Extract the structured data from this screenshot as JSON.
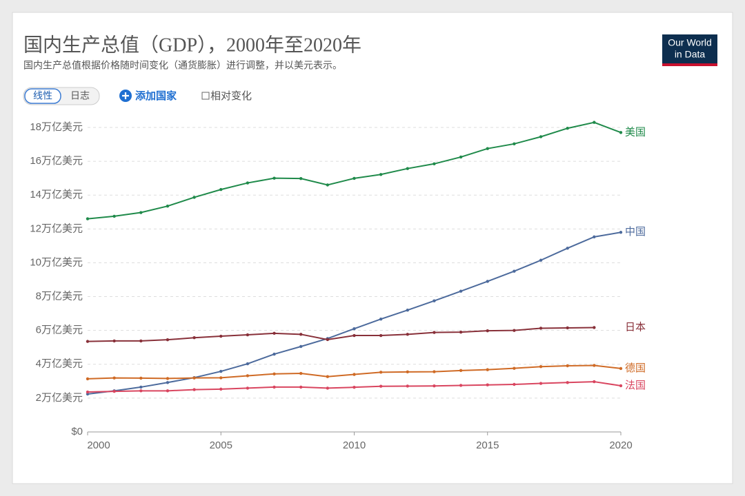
{
  "chart_data": {
    "type": "line",
    "title": "国内生产总值（GDP），2000年至2020年",
    "subtitle": "国内生产总值根据价格随时间变化（通货膨胀）进行调整，并以美元表示。",
    "x": [
      2000,
      2001,
      2002,
      2003,
      2004,
      2005,
      2006,
      2007,
      2008,
      2009,
      2010,
      2011,
      2012,
      2013,
      2014,
      2015,
      2016,
      2017,
      2018,
      2019,
      2020
    ],
    "xlim": [
      2000,
      2020
    ],
    "xticks": [
      2000,
      2005,
      2010,
      2015,
      2020
    ],
    "ylim": [
      0,
      18
    ],
    "yticks": [
      {
        "value": 0,
        "label": "$0"
      },
      {
        "value": 2,
        "label": "2万亿美元"
      },
      {
        "value": 4,
        "label": "4万亿美元"
      },
      {
        "value": 6,
        "label": "6万亿美元"
      },
      {
        "value": 8,
        "label": "8万亿美元"
      },
      {
        "value": 10,
        "label": "10万亿美元"
      },
      {
        "value": 12,
        "label": "12万亿美元"
      },
      {
        "value": 14,
        "label": "14万亿美元"
      },
      {
        "value": 16,
        "label": "16万亿美元"
      },
      {
        "value": 18,
        "label": "18万亿美元"
      }
    ],
    "grid": true,
    "series": [
      {
        "name": "美国",
        "color": "#1f8a4a",
        "values": [
          12.6,
          12.75,
          12.97,
          13.35,
          13.87,
          14.33,
          14.72,
          15.0,
          14.98,
          14.6,
          14.99,
          15.22,
          15.57,
          15.85,
          16.25,
          16.75,
          17.03,
          17.45,
          17.95,
          18.3,
          17.7
        ]
      },
      {
        "name": "中国",
        "color": "#4c6a9c",
        "values": [
          2.24,
          2.43,
          2.65,
          2.92,
          3.21,
          3.58,
          4.03,
          4.6,
          5.05,
          5.52,
          6.1,
          6.67,
          7.2,
          7.75,
          8.32,
          8.9,
          9.5,
          10.15,
          10.86,
          11.53,
          11.8
        ]
      },
      {
        "name": "日本",
        "color": "#883039",
        "values": [
          5.35,
          5.38,
          5.38,
          5.45,
          5.57,
          5.66,
          5.74,
          5.83,
          5.77,
          5.46,
          5.7,
          5.7,
          5.77,
          5.88,
          5.9,
          5.98,
          6.0,
          6.13,
          6.15,
          6.17,
          null
        ]
      },
      {
        "name": "德国",
        "color": "#cf6a25",
        "values": [
          3.14,
          3.19,
          3.18,
          3.16,
          3.19,
          3.2,
          3.32,
          3.43,
          3.46,
          3.27,
          3.4,
          3.53,
          3.55,
          3.56,
          3.63,
          3.68,
          3.76,
          3.86,
          3.91,
          3.93,
          3.75
        ]
      },
      {
        "name": "法国",
        "color": "#d9455f",
        "values": [
          2.36,
          2.4,
          2.43,
          2.43,
          2.5,
          2.53,
          2.59,
          2.65,
          2.65,
          2.59,
          2.64,
          2.7,
          2.71,
          2.72,
          2.75,
          2.78,
          2.81,
          2.87,
          2.92,
          2.97,
          2.73
        ]
      }
    ]
  },
  "controls": {
    "linear": "线性",
    "log": "日志",
    "add_country": "添加国家",
    "relative_change": "相对变化"
  },
  "logo": {
    "line1": "Our World",
    "line2": "in Data"
  }
}
